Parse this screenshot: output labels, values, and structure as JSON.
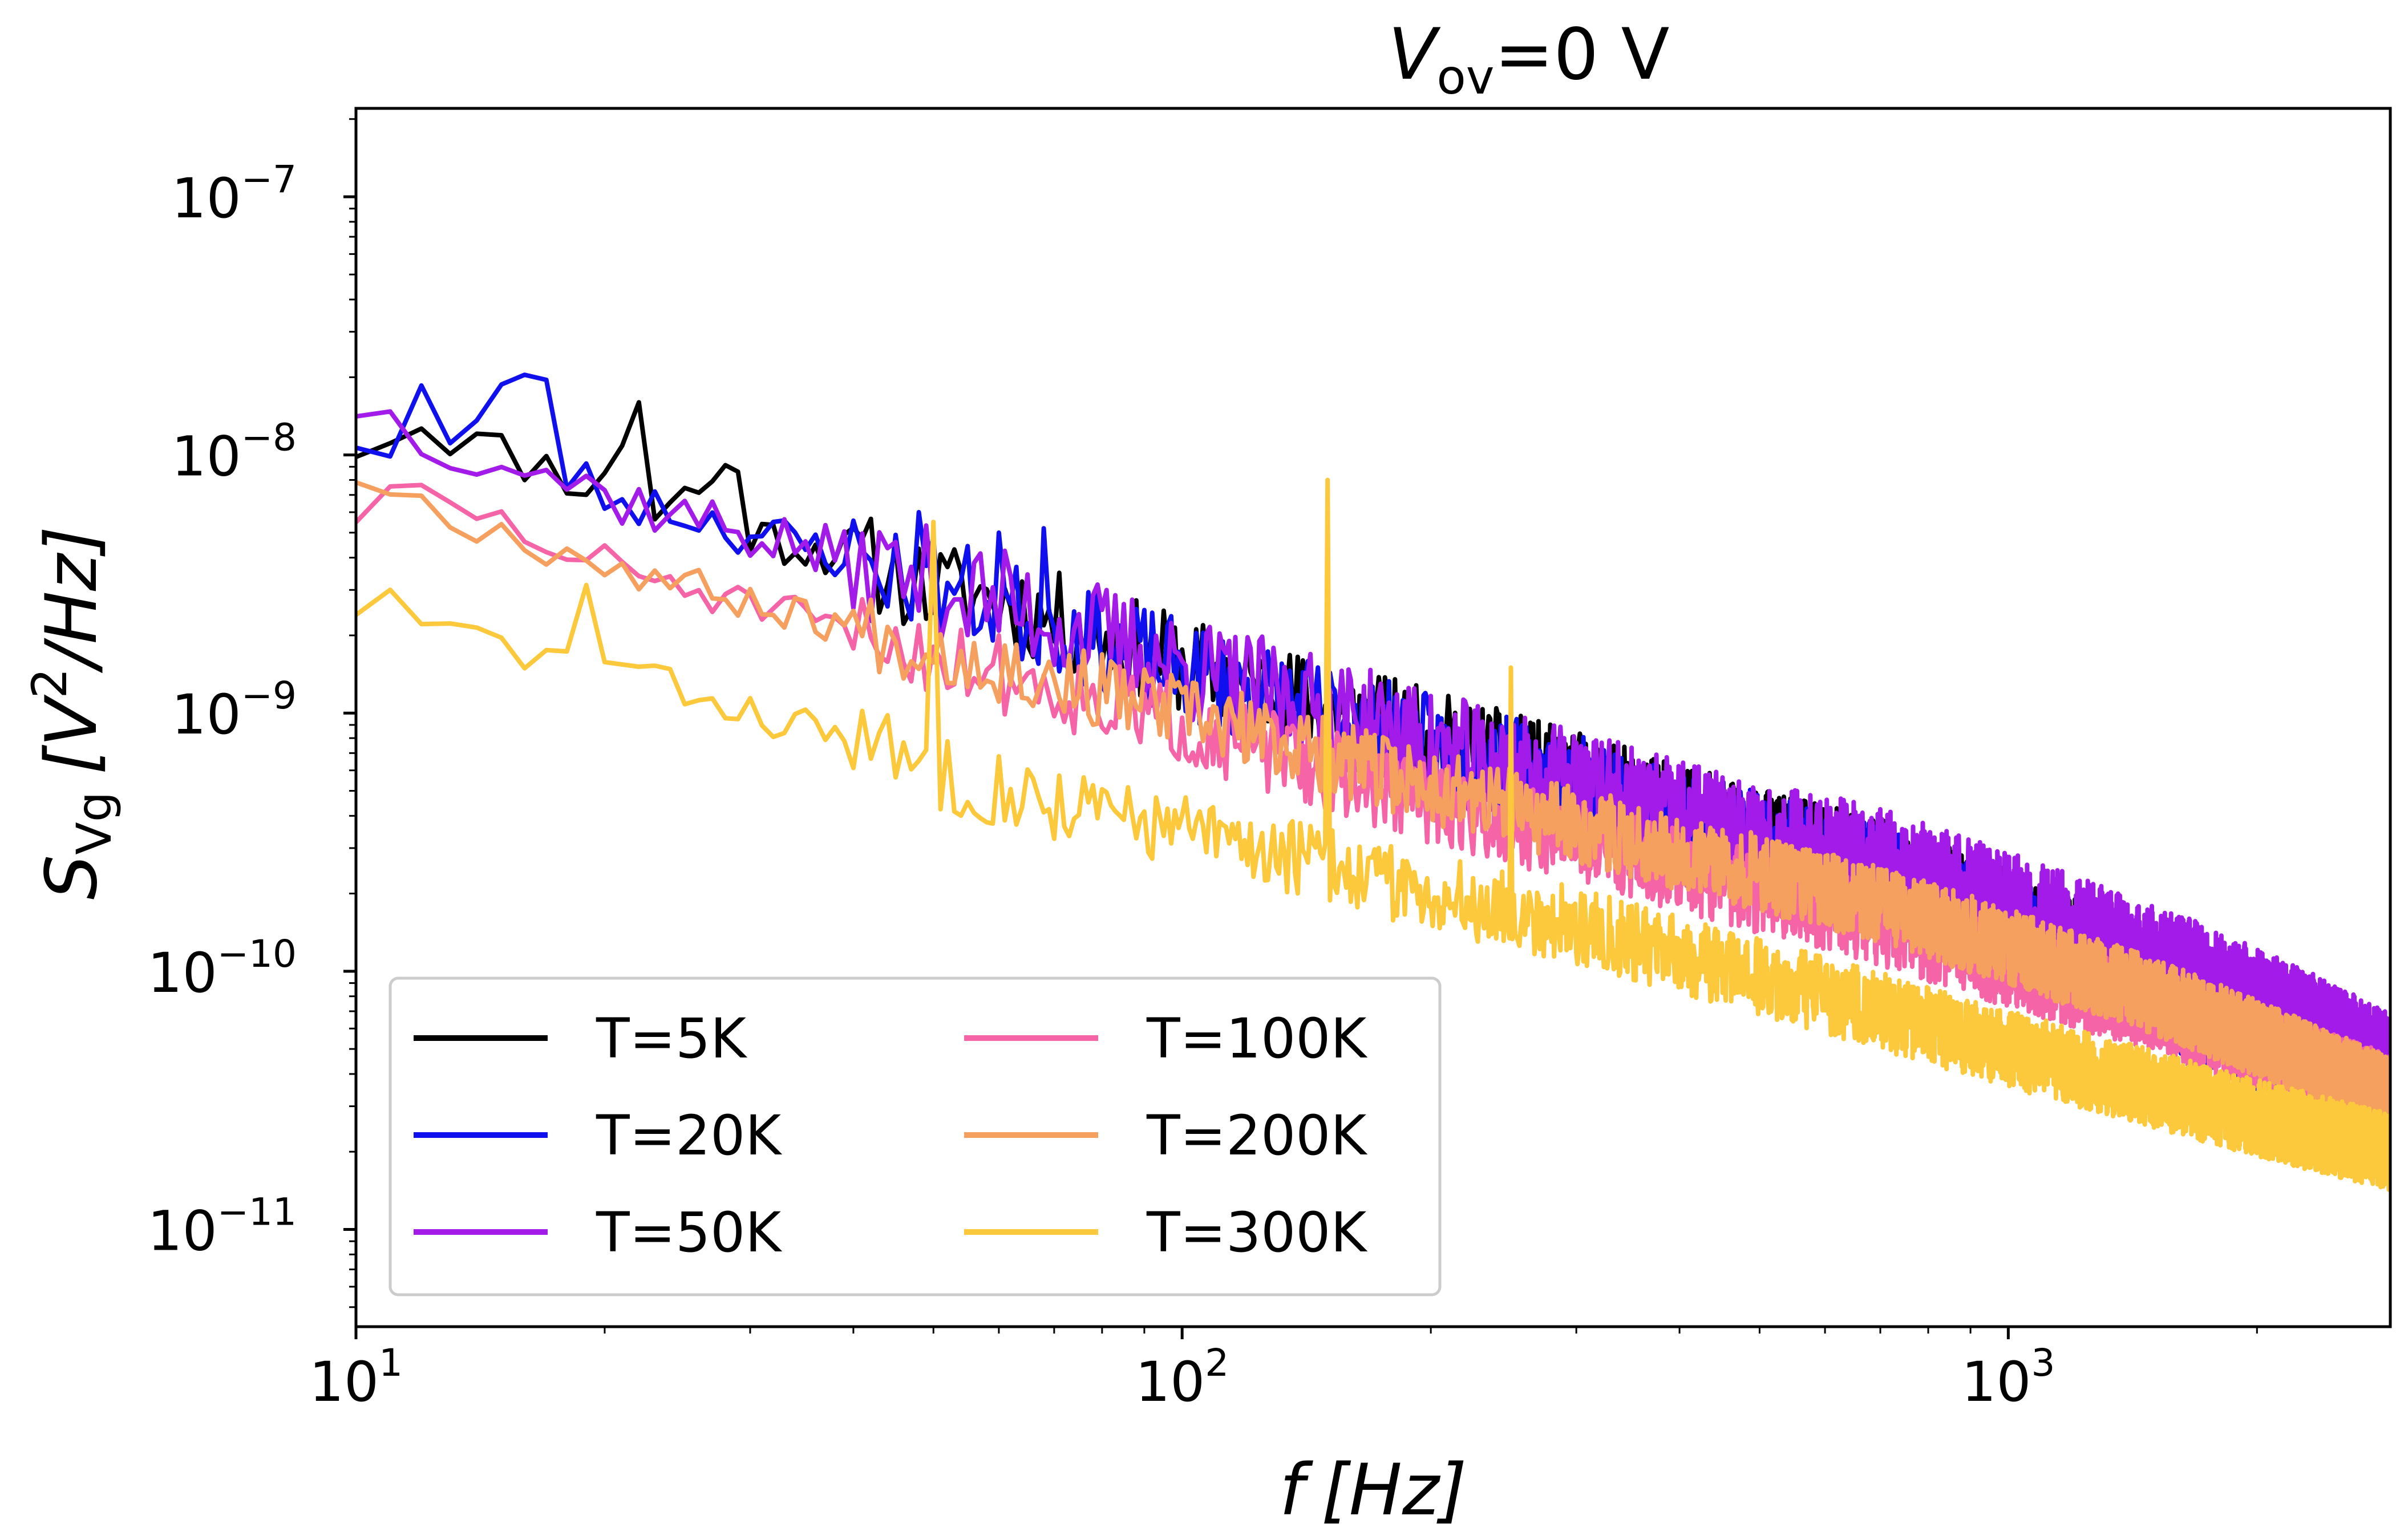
{
  "chart_data": {
    "type": "line",
    "title": "V_ov=0 V",
    "title_parts": {
      "var": "V",
      "sub": "ov",
      "rest": "=0 V"
    },
    "xlabel": "f [Hz]",
    "xlabel_parts": {
      "var": "f",
      "unit": "[Hz]"
    },
    "ylabel": "S_Vg [V²/Hz]",
    "ylabel_parts": {
      "var": "S",
      "sub": "Vg",
      "unit_open": "[V",
      "sup": "2",
      "unit_close": "/Hz]"
    },
    "xscale": "log",
    "yscale": "log",
    "xlim": [
      10,
      2900
    ],
    "ylim": [
      4.2e-12,
      2.2e-07
    ],
    "x_ticks": [
      {
        "base": "10",
        "exp": "1",
        "value": 10
      },
      {
        "base": "10",
        "exp": "2",
        "value": 100
      },
      {
        "base": "10",
        "exp": "3",
        "value": 1000
      }
    ],
    "y_ticks": [
      {
        "base": "10",
        "exp": "−11",
        "value": 1e-11
      },
      {
        "base": "10",
        "exp": "−10",
        "value": 1e-10
      },
      {
        "base": "10",
        "exp": "−9",
        "value": 1e-09
      },
      {
        "base": "10",
        "exp": "−8",
        "value": 1e-08
      },
      {
        "base": "10",
        "exp": "−7",
        "value": 1e-07
      }
    ],
    "grid": false,
    "legend": {
      "position": "lower-left",
      "columns": 2
    },
    "f_max": 2900,
    "series": [
      {
        "name": "T=5K",
        "color": "#000000",
        "alpha": 1.8,
        "points": [
          [
            10,
            1.1e-08
          ],
          [
            12,
            1.35e-08
          ],
          [
            14,
            1.1e-08
          ],
          [
            17,
            9e-09
          ],
          [
            20,
            7.5e-09
          ],
          [
            21,
            1.2e-08
          ],
          [
            22,
            1.7e-08
          ],
          [
            23,
            6e-09
          ],
          [
            25,
            7e-09
          ],
          [
            29,
            9e-09
          ],
          [
            30,
            5e-09
          ],
          [
            40,
            4e-09
          ],
          [
            50,
            3e-09
          ],
          [
            60,
            2.8e-09
          ],
          [
            70,
            2.3e-09
          ],
          [
            80,
            2e-09
          ],
          [
            100,
            1.55e-09
          ],
          [
            150,
            1.05e-09
          ],
          [
            200,
            8e-10
          ],
          [
            300,
            5.5e-10
          ],
          [
            500,
            3.3e-10
          ],
          [
            700,
            2.5e-10
          ],
          [
            1000,
            1.6e-10
          ],
          [
            1500,
            9e-11
          ],
          [
            2000,
            6e-11
          ],
          [
            2900,
            3.5e-11
          ]
        ],
        "noise": 0.19,
        "seed": 11,
        "spikes": []
      },
      {
        "name": "T=20K",
        "color": "#1010ee",
        "alpha": 1.8,
        "points": [
          [
            10,
            1.2e-08
          ],
          [
            11,
            1.05e-08
          ],
          [
            12,
            1.8e-08
          ],
          [
            13,
            1.1e-08
          ],
          [
            14.5,
            1.3e-08
          ],
          [
            15.5,
            2e-08
          ],
          [
            16.5,
            2.6e-08
          ],
          [
            18,
            8.5e-09
          ],
          [
            20,
            7e-09
          ],
          [
            25,
            6e-09
          ],
          [
            30,
            5e-09
          ],
          [
            40,
            4e-09
          ],
          [
            50,
            3.2e-09
          ],
          [
            60,
            2.6e-09
          ],
          [
            70,
            2.2e-09
          ],
          [
            100,
            1.45e-09
          ],
          [
            150,
            1e-09
          ],
          [
            200,
            7.5e-10
          ],
          [
            300,
            5.2e-10
          ],
          [
            500,
            3.1e-10
          ],
          [
            700,
            2.3e-10
          ],
          [
            1000,
            1.5e-10
          ],
          [
            1500,
            8.5e-11
          ],
          [
            2000,
            5.5e-11
          ],
          [
            2900,
            3.2e-11
          ]
        ],
        "noise": 0.2,
        "seed": 23,
        "spikes": [
          [
            48,
            6e-09
          ],
          [
            60,
            5e-09
          ],
          [
            68,
            5.2e-09
          ]
        ]
      },
      {
        "name": "T=50K",
        "color": "#a31be8",
        "alpha": 1.8,
        "points": [
          [
            10,
            1.6e-08
          ],
          [
            12,
            1.2e-08
          ],
          [
            15,
            1e-08
          ],
          [
            18,
            8e-09
          ],
          [
            20,
            7e-09
          ],
          [
            30,
            5e-09
          ],
          [
            50,
            3.2e-09
          ],
          [
            70,
            2.3e-09
          ],
          [
            100,
            1.5e-09
          ],
          [
            150,
            1e-09
          ],
          [
            200,
            7.5e-10
          ],
          [
            300,
            5.2e-10
          ],
          [
            500,
            3.3e-10
          ],
          [
            700,
            2.6e-10
          ],
          [
            1000,
            1.75e-10
          ],
          [
            1500,
            1.1e-10
          ],
          [
            2000,
            7.5e-11
          ],
          [
            2900,
            4.2e-11
          ]
        ],
        "noise": 0.22,
        "seed": 37,
        "spikes": []
      },
      {
        "name": "T=100K",
        "color": "#f564a6",
        "alpha": 1.8,
        "points": [
          [
            10,
            6e-09
          ],
          [
            12,
            7e-09
          ],
          [
            15,
            5.5e-09
          ],
          [
            18,
            4e-09
          ],
          [
            20,
            3.8e-09
          ],
          [
            30,
            2.6e-09
          ],
          [
            50,
            1.7e-09
          ],
          [
            70,
            1.25e-09
          ],
          [
            100,
            9e-10
          ],
          [
            150,
            6e-10
          ],
          [
            200,
            4.5e-10
          ],
          [
            300,
            3.2e-10
          ],
          [
            500,
            2e-10
          ],
          [
            700,
            1.5e-10
          ],
          [
            1000,
            1.05e-10
          ],
          [
            1500,
            7e-11
          ],
          [
            2000,
            5e-11
          ],
          [
            2900,
            3.3e-11
          ]
        ],
        "noise": 0.16,
        "seed": 51,
        "spikes": []
      },
      {
        "name": "T=200K",
        "color": "#f5a05e",
        "alpha": 1.8,
        "points": [
          [
            10,
            8.5e-09
          ],
          [
            12,
            6.5e-09
          ],
          [
            15,
            5e-09
          ],
          [
            20,
            3.8e-09
          ],
          [
            30,
            2.7e-09
          ],
          [
            50,
            1.8e-09
          ],
          [
            70,
            1.35e-09
          ],
          [
            100,
            1e-09
          ],
          [
            150,
            6.8e-10
          ],
          [
            200,
            5.2e-10
          ],
          [
            300,
            3.7e-10
          ],
          [
            500,
            2.4e-10
          ],
          [
            700,
            1.8e-10
          ],
          [
            1000,
            1.25e-10
          ],
          [
            1500,
            8e-11
          ],
          [
            2000,
            5.5e-11
          ],
          [
            2900,
            3.3e-11
          ]
        ],
        "noise": 0.15,
        "seed": 67,
        "spikes": []
      },
      {
        "name": "T=300K",
        "color": "#fcc93c",
        "alpha": 1.8,
        "points": [
          [
            10,
            2.6e-09
          ],
          [
            11,
            2.7e-09
          ],
          [
            12,
            2.1e-09
          ],
          [
            14,
            2e-09
          ],
          [
            16,
            1.7e-09
          ],
          [
            18,
            1.6e-09
          ],
          [
            19,
            3.3e-09
          ],
          [
            20,
            1.6e-09
          ],
          [
            25,
            1.2e-09
          ],
          [
            30,
            1e-09
          ],
          [
            40,
            8e-10
          ],
          [
            50,
            6e-10
          ],
          [
            70,
            4.5e-10
          ],
          [
            100,
            3.5e-10
          ],
          [
            150,
            2.6e-10
          ],
          [
            200,
            2e-10
          ],
          [
            300,
            1.5e-10
          ],
          [
            500,
            9.5e-11
          ],
          [
            700,
            7e-11
          ],
          [
            1000,
            5e-11
          ],
          [
            1500,
            3.5e-11
          ],
          [
            2000,
            2.7e-11
          ],
          [
            2900,
            2e-11
          ]
        ],
        "noise": 0.15,
        "seed": 83,
        "spikes": [
          [
            50,
            5.5e-09
          ],
          [
            150,
            8e-09
          ],
          [
            250,
            1.5e-09
          ]
        ]
      }
    ]
  }
}
